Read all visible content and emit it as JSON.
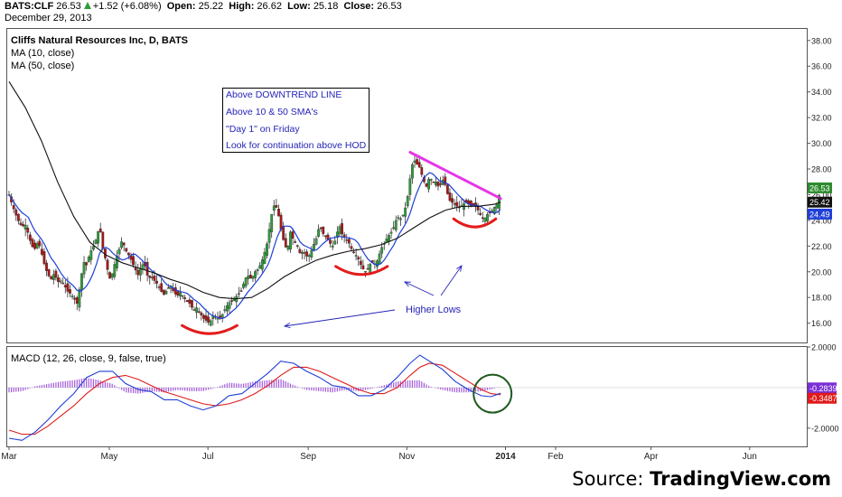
{
  "header": {
    "symbol": "BATS:CLF",
    "last": "26.53",
    "change": "+1.52 (+6.08%)",
    "open_label": "Open:",
    "open": "25.22",
    "high_label": "High:",
    "high": "26.62",
    "low_label": "Low:",
    "low": "25.18",
    "close_label": "Close:",
    "close": "26.53",
    "date": "December 29, 2013"
  },
  "price_panel": {
    "title": "Cliffs Natural Resources Inc, D, BATS",
    "ma10_label": "MA (10, close)",
    "ma50_label": "MA (50, close)",
    "annotation_lines": [
      "Above DOWNTREND LINE",
      "Above 10 & 50 SMA's",
      "\"Day 1\" on Friday",
      "Look for continuation above HOD"
    ],
    "higher_lows_label": "Higher Lows",
    "price_ticks": [
      "38.00",
      "36.00",
      "34.00",
      "32.00",
      "30.00",
      "28.00",
      "26.00",
      "24.00",
      "22.00",
      "20.00",
      "18.00",
      "16.00"
    ],
    "badges": [
      {
        "label": "26.53",
        "value": 26.53,
        "bg": "#2e8b2e",
        "fg": "#ffffff"
      },
      {
        "label": "25.42",
        "value": 25.42,
        "bg": "#111111",
        "fg": "#ffffff"
      },
      {
        "label": "24.49",
        "value": 24.49,
        "bg": "#1f3fd6",
        "fg": "#ffffff"
      }
    ]
  },
  "macd_panel": {
    "title": "MACD (12, 26, close, 9, false, true)",
    "ticks": [
      "2.0000",
      "-2.0000"
    ],
    "badges": [
      {
        "label": "-0.2839",
        "value": -0.2839,
        "bg": "#7b2fd6",
        "fg": "#ffffff"
      },
      {
        "label": "-0.3487",
        "value": -0.3487,
        "bg": "#e01b1b",
        "fg": "#ffffff"
      }
    ]
  },
  "time_axis": {
    "labels": [
      {
        "label": "Mar",
        "day": 0
      },
      {
        "label": "May",
        "day": 62
      },
      {
        "label": "Jul",
        "day": 123
      },
      {
        "label": "Sep",
        "day": 185
      },
      {
        "label": "Nov",
        "day": 246
      },
      {
        "label": "2014",
        "day": 307,
        "bold": true
      },
      {
        "label": "Feb",
        "day": 338
      },
      {
        "label": "Apr",
        "day": 397
      },
      {
        "label": "Jun",
        "day": 458
      }
    ]
  },
  "colors": {
    "up": "#2e9e3a",
    "down": "#b01515",
    "ma10": "#1f3fd6",
    "ma50": "#111111",
    "trendline": "#e636e6",
    "arc": "#e31b1b",
    "macd": "#1f3fd6",
    "signal": "#e01b1b",
    "hist": "#a25ad9",
    "circle": "#1e5a1e",
    "annot_text": "#2424b8"
  },
  "chart_data": {
    "type": "candlestick",
    "title": "Cliffs Natural Resources Inc, D, BATS",
    "x_unit": "days since Mar 1, 2013",
    "price_range": [
      14.5,
      38.9
    ],
    "macd_range": [
      -2.9,
      2.0
    ],
    "close_path": [
      [
        0,
        26.0
      ],
      [
        2,
        25.2
      ],
      [
        4,
        24.5
      ],
      [
        6,
        23.9
      ],
      [
        8,
        23.5
      ],
      [
        10,
        23.7
      ],
      [
        12,
        22.9
      ],
      [
        14,
        22.0
      ],
      [
        16,
        21.8
      ],
      [
        18,
        22.4
      ],
      [
        20,
        21.5
      ],
      [
        22,
        20.5
      ],
      [
        24,
        19.8
      ],
      [
        26,
        19.4
      ],
      [
        28,
        19.9
      ],
      [
        30,
        19.2
      ],
      [
        32,
        19.3
      ],
      [
        34,
        19.0
      ],
      [
        36,
        18.5
      ],
      [
        38,
        18.3
      ],
      [
        40,
        18.0
      ],
      [
        42,
        17.5
      ],
      [
        44,
        19.0
      ],
      [
        46,
        20.8
      ],
      [
        48,
        20.5
      ],
      [
        50,
        21.5
      ],
      [
        52,
        21.9
      ],
      [
        54,
        22.6
      ],
      [
        56,
        23.6
      ],
      [
        58,
        21.8
      ],
      [
        60,
        20.8
      ],
      [
        62,
        19.4
      ],
      [
        64,
        19.9
      ],
      [
        66,
        21.0
      ],
      [
        68,
        21.7
      ],
      [
        70,
        22.5
      ],
      [
        72,
        21.7
      ],
      [
        74,
        21.3
      ],
      [
        76,
        20.8
      ],
      [
        78,
        20.2
      ],
      [
        80,
        19.7
      ],
      [
        82,
        20.6
      ],
      [
        84,
        20.5
      ],
      [
        86,
        19.5
      ],
      [
        88,
        19.6
      ],
      [
        90,
        19.3
      ],
      [
        92,
        19.0
      ],
      [
        94,
        18.5
      ],
      [
        96,
        18.2
      ],
      [
        98,
        18.7
      ],
      [
        100,
        18.9
      ],
      [
        102,
        18.4
      ],
      [
        104,
        18.1
      ],
      [
        106,
        18.4
      ],
      [
        108,
        18.0
      ],
      [
        110,
        17.7
      ],
      [
        112,
        17.5
      ],
      [
        114,
        17.0
      ],
      [
        116,
        17.2
      ],
      [
        118,
        16.8
      ],
      [
        120,
        16.4
      ],
      [
        122,
        16.2
      ],
      [
        124,
        16.0
      ],
      [
        126,
        16.6
      ],
      [
        128,
        16.5
      ],
      [
        130,
        16.3
      ],
      [
        132,
        16.7
      ],
      [
        134,
        17.2
      ],
      [
        136,
        17.6
      ],
      [
        138,
        17.7
      ],
      [
        140,
        18.0
      ],
      [
        142,
        18.3
      ],
      [
        144,
        18.6
      ],
      [
        146,
        19.5
      ],
      [
        148,
        19.7
      ],
      [
        150,
        19.4
      ],
      [
        152,
        20.0
      ],
      [
        154,
        20.2
      ],
      [
        156,
        20.7
      ],
      [
        158,
        21.5
      ],
      [
        160,
        22.4
      ],
      [
        162,
        24.3
      ],
      [
        164,
        25.2
      ],
      [
        166,
        24.9
      ],
      [
        168,
        23.4
      ],
      [
        170,
        22.3
      ],
      [
        172,
        21.6
      ],
      [
        174,
        23.1
      ],
      [
        176,
        22.4
      ],
      [
        178,
        22.1
      ],
      [
        180,
        21.4
      ],
      [
        182,
        21.6
      ],
      [
        184,
        21.2
      ],
      [
        186,
        21.3
      ],
      [
        188,
        22.0
      ],
      [
        190,
        22.6
      ],
      [
        192,
        23.6
      ],
      [
        194,
        23.0
      ],
      [
        196,
        22.7
      ],
      [
        198,
        22.3
      ],
      [
        200,
        22.0
      ],
      [
        202,
        22.5
      ],
      [
        204,
        23.7
      ],
      [
        206,
        22.9
      ],
      [
        208,
        22.6
      ],
      [
        210,
        22.3
      ],
      [
        212,
        21.7
      ],
      [
        214,
        21.4
      ],
      [
        216,
        21.0
      ],
      [
        218,
        20.4
      ],
      [
        220,
        20.0
      ],
      [
        222,
        20.2
      ],
      [
        224,
        20.8
      ],
      [
        226,
        20.6
      ],
      [
        228,
        20.9
      ],
      [
        230,
        21.8
      ],
      [
        232,
        22.2
      ],
      [
        234,
        22.7
      ],
      [
        236,
        23.0
      ],
      [
        238,
        23.5
      ],
      [
        240,
        24.3
      ],
      [
        242,
        24.1
      ],
      [
        244,
        24.5
      ],
      [
        246,
        25.4
      ],
      [
        248,
        27.3
      ],
      [
        250,
        28.8
      ],
      [
        252,
        28.4
      ],
      [
        254,
        28.1
      ],
      [
        256,
        27.2
      ],
      [
        258,
        26.6
      ],
      [
        260,
        27.4
      ],
      [
        262,
        27.0
      ],
      [
        264,
        27.0
      ],
      [
        266,
        26.5
      ],
      [
        268,
        27.2
      ],
      [
        270,
        26.7
      ],
      [
        272,
        25.6
      ],
      [
        274,
        25.4
      ],
      [
        276,
        25.2
      ],
      [
        278,
        25.0
      ],
      [
        280,
        25.1
      ],
      [
        282,
        25.4
      ],
      [
        284,
        25.3
      ],
      [
        286,
        25.1
      ],
      [
        288,
        25.2
      ],
      [
        290,
        24.8
      ],
      [
        292,
        24.3
      ],
      [
        294,
        24.1
      ],
      [
        296,
        24.5
      ],
      [
        298,
        24.6
      ],
      [
        300,
        25.0
      ],
      [
        302,
        25.3
      ],
      [
        304,
        26.53
      ]
    ],
    "ma50": [
      [
        0,
        34.8
      ],
      [
        10,
        32.8
      ],
      [
        20,
        30.2
      ],
      [
        30,
        27.0
      ],
      [
        40,
        24.3
      ],
      [
        50,
        22.3
      ],
      [
        60,
        21.3
      ],
      [
        70,
        20.7
      ],
      [
        80,
        20.3
      ],
      [
        90,
        19.9
      ],
      [
        100,
        19.4
      ],
      [
        110,
        19.0
      ],
      [
        120,
        18.4
      ],
      [
        130,
        18.0
      ],
      [
        140,
        17.9
      ],
      [
        150,
        18.0
      ],
      [
        160,
        18.7
      ],
      [
        170,
        19.6
      ],
      [
        180,
        20.3
      ],
      [
        190,
        20.9
      ],
      [
        200,
        21.3
      ],
      [
        210,
        21.6
      ],
      [
        220,
        21.8
      ],
      [
        230,
        22.1
      ],
      [
        240,
        22.6
      ],
      [
        250,
        23.4
      ],
      [
        260,
        24.2
      ],
      [
        270,
        24.8
      ],
      [
        280,
        25.1
      ],
      [
        290,
        25.1
      ],
      [
        300,
        25.25
      ],
      [
        304,
        25.42
      ]
    ],
    "trendline": [
      [
        248,
        29.3
      ],
      [
        304,
        25.7
      ]
    ],
    "support_arcs": [
      {
        "center_day": 124,
        "price": 15.4,
        "half_width_days": 17
      },
      {
        "center_day": 218,
        "price": 20.0,
        "half_width_days": 16
      },
      {
        "center_day": 288,
        "price": 23.7,
        "half_width_days": 13
      }
    ],
    "macd_line": [
      [
        0,
        -2.5
      ],
      [
        8,
        -2.6
      ],
      [
        16,
        -2.2
      ],
      [
        24,
        -1.6
      ],
      [
        32,
        -0.9
      ],
      [
        40,
        -0.3
      ],
      [
        48,
        0.5
      ],
      [
        56,
        0.8
      ],
      [
        64,
        0.8
      ],
      [
        72,
        0.2
      ],
      [
        80,
        -0.1
      ],
      [
        88,
        -0.2
      ],
      [
        96,
        -0.6
      ],
      [
        104,
        -0.6
      ],
      [
        112,
        -0.9
      ],
      [
        120,
        -1.1
      ],
      [
        128,
        -0.9
      ],
      [
        136,
        -0.4
      ],
      [
        144,
        -0.3
      ],
      [
        152,
        0.2
      ],
      [
        160,
        0.7
      ],
      [
        168,
        1.3
      ],
      [
        176,
        1.2
      ],
      [
        184,
        0.8
      ],
      [
        192,
        0.5
      ],
      [
        200,
        0.1
      ],
      [
        208,
        0.0
      ],
      [
        216,
        -0.4
      ],
      [
        224,
        -0.4
      ],
      [
        232,
        -0.1
      ],
      [
        240,
        0.5
      ],
      [
        248,
        1.2
      ],
      [
        254,
        1.6
      ],
      [
        260,
        1.3
      ],
      [
        268,
        0.9
      ],
      [
        276,
        0.3
      ],
      [
        284,
        -0.1
      ],
      [
        292,
        -0.4
      ],
      [
        298,
        -0.45
      ],
      [
        304,
        -0.28
      ]
    ],
    "signal_line": [
      [
        0,
        -2.1
      ],
      [
        8,
        -2.3
      ],
      [
        16,
        -2.3
      ],
      [
        24,
        -1.9
      ],
      [
        32,
        -1.4
      ],
      [
        40,
        -0.9
      ],
      [
        48,
        -0.3
      ],
      [
        56,
        0.2
      ],
      [
        64,
        0.5
      ],
      [
        72,
        0.6
      ],
      [
        80,
        0.4
      ],
      [
        88,
        0.1
      ],
      [
        96,
        -0.2
      ],
      [
        104,
        -0.4
      ],
      [
        112,
        -0.6
      ],
      [
        120,
        -0.8
      ],
      [
        128,
        -0.9
      ],
      [
        136,
        -0.8
      ],
      [
        144,
        -0.6
      ],
      [
        152,
        -0.3
      ],
      [
        160,
        0.1
      ],
      [
        168,
        0.6
      ],
      [
        176,
        1.0
      ],
      [
        184,
        1.0
      ],
      [
        192,
        0.8
      ],
      [
        200,
        0.5
      ],
      [
        208,
        0.2
      ],
      [
        216,
        -0.1
      ],
      [
        224,
        -0.3
      ],
      [
        232,
        -0.3
      ],
      [
        240,
        0.0
      ],
      [
        248,
        0.6
      ],
      [
        254,
        1.0
      ],
      [
        260,
        1.2
      ],
      [
        268,
        1.1
      ],
      [
        276,
        0.7
      ],
      [
        284,
        0.3
      ],
      [
        292,
        -0.1
      ],
      [
        298,
        -0.3
      ],
      [
        304,
        -0.35
      ]
    ],
    "annotation_arrows": [
      {
        "from": [
          437,
          343
        ],
        "to": [
          315,
          361
        ]
      },
      {
        "from": [
          480,
          327
        ],
        "to": [
          448,
          312
        ]
      },
      {
        "from": [
          488,
          327
        ],
        "to": [
          511,
          294
        ]
      }
    ]
  }
}
